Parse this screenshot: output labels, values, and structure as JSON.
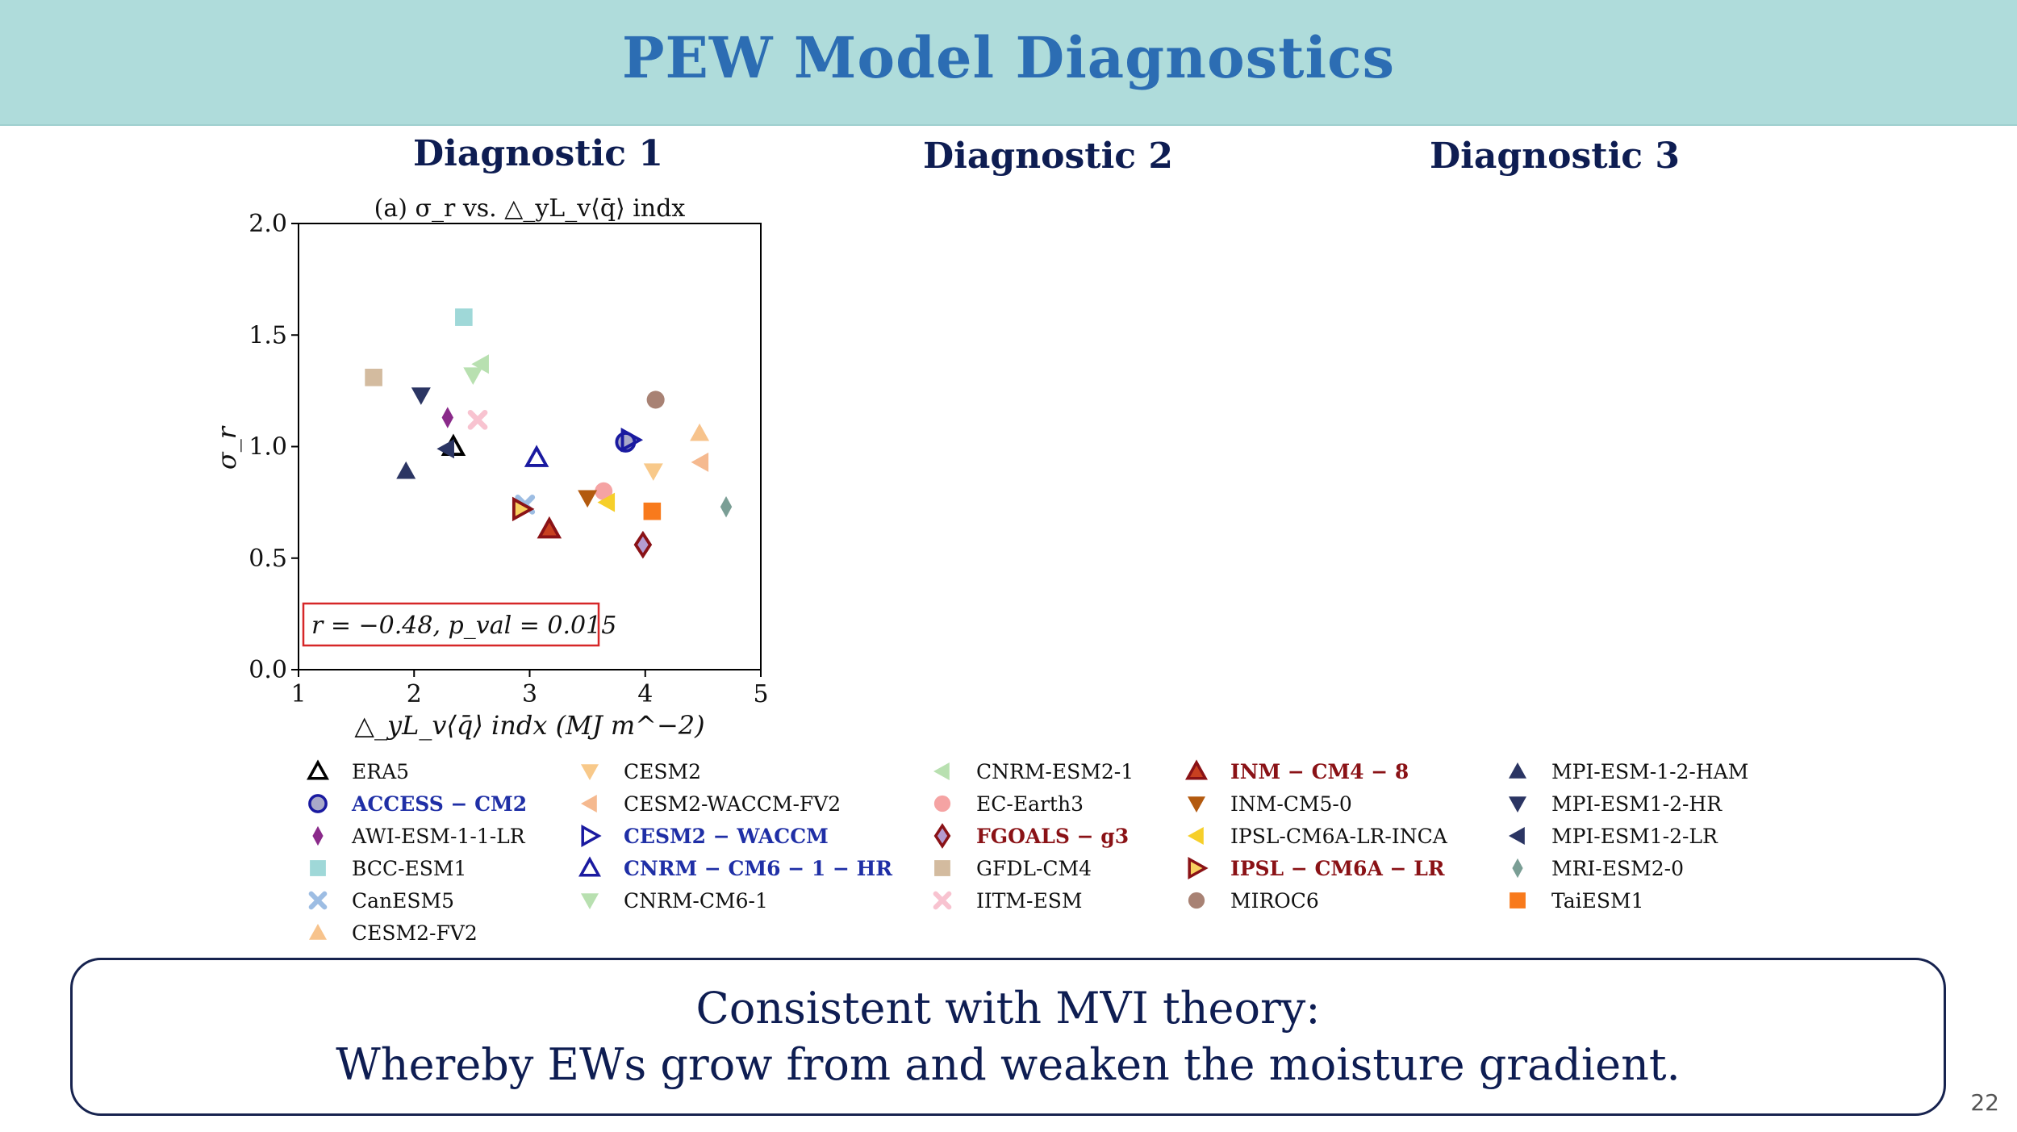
{
  "header": {
    "title": "PEW Model Diagnostics"
  },
  "diagnostics": {
    "d1": "Diagnostic 1",
    "d2": "Diagnostic 2",
    "d3": "Diagnostic 3"
  },
  "chart_data": {
    "type": "scatter",
    "title": "(a) σ_r vs. △_yL_v⟨q̄⟩ indx",
    "xlabel": "△_yL_v⟨q̄⟩ indx (MJ m^−2)",
    "ylabel": "σ_r",
    "xlim": [
      1,
      5
    ],
    "ylim": [
      0,
      2.0
    ],
    "x_ticks": [
      "1",
      "2",
      "3",
      "4",
      "5"
    ],
    "y_ticks": [
      "0.0",
      "0.5",
      "1.0",
      "1.5",
      "2.0"
    ],
    "x_tick_values": [
      1,
      2,
      3,
      4,
      5
    ],
    "y_tick_values": [
      0,
      0.5,
      1.0,
      1.5,
      2.0
    ],
    "annotation": "r = −0.48, p_val = 0.015",
    "grid": false,
    "points": [
      {
        "name": "ERA5",
        "x": 2.34,
        "y": 1.0
      },
      {
        "name": "ACCESS − CM2",
        "x": 3.83,
        "y": 1.02
      },
      {
        "name": "AWI-ESM-1-1-LR",
        "x": 2.29,
        "y": 1.13
      },
      {
        "name": "BCC-ESM1",
        "x": 2.43,
        "y": 1.58
      },
      {
        "name": "CanESM5",
        "x": 2.96,
        "y": 0.74
      },
      {
        "name": "CESM2-FV2",
        "x": 4.47,
        "y": 1.06
      },
      {
        "name": "CESM2",
        "x": 4.07,
        "y": 0.89
      },
      {
        "name": "CESM2-WACCM-FV2",
        "x": 4.48,
        "y": 0.93
      },
      {
        "name": "CESM2 − WACCM",
        "x": 3.87,
        "y": 1.03
      },
      {
        "name": "CNRM − CM6 − 1 − HR",
        "x": 3.06,
        "y": 0.95
      },
      {
        "name": "CNRM-CM6-1",
        "x": 2.51,
        "y": 1.32
      },
      {
        "name": "CNRM-ESM2-1",
        "x": 2.58,
        "y": 1.37
      },
      {
        "name": "EC-Earth3",
        "x": 3.64,
        "y": 0.8
      },
      {
        "name": "FGOALS − g3",
        "x": 3.98,
        "y": 0.56
      },
      {
        "name": "GFDL-CM4",
        "x": 1.65,
        "y": 1.31
      },
      {
        "name": "IITM-ESM",
        "x": 2.55,
        "y": 1.12
      },
      {
        "name": "INM − CM4 − 8",
        "x": 3.17,
        "y": 0.63
      },
      {
        "name": "INM-CM5-0",
        "x": 3.5,
        "y": 0.77
      },
      {
        "name": "IPSL-CM6A-LR-INCA",
        "x": 3.67,
        "y": 0.75
      },
      {
        "name": "IPSL − CM6A − LR",
        "x": 2.93,
        "y": 0.72
      },
      {
        "name": "MIROC6",
        "x": 4.09,
        "y": 1.21
      },
      {
        "name": "MPI-ESM-1-2-HAM",
        "x": 1.93,
        "y": 0.89
      },
      {
        "name": "MPI-ESM1-2-HR",
        "x": 2.06,
        "y": 1.23
      },
      {
        "name": "MPI-ESM1-2-LR",
        "x": 2.28,
        "y": 0.99
      },
      {
        "name": "MRI-ESM2-0",
        "x": 4.7,
        "y": 0.73
      },
      {
        "name": "TaiESM1",
        "x": 4.06,
        "y": 0.71
      }
    ]
  },
  "legend": [
    {
      "label": "ERA5",
      "marker": "triangle-up",
      "fill": "none",
      "stroke": "#000000",
      "style": ""
    },
    {
      "label": "ACCESS − CM2",
      "marker": "circle",
      "fill": "#a9a9c9",
      "stroke": "#1a1aa0",
      "style": "hl-blue"
    },
    {
      "label": "AWI-ESM-1-1-LR",
      "marker": "diamond-thin",
      "fill": "#8a2a8a",
      "stroke": "none",
      "style": ""
    },
    {
      "label": "BCC-ESM1",
      "marker": "square",
      "fill": "#9fd8d8",
      "stroke": "none",
      "style": ""
    },
    {
      "label": "CanESM5",
      "marker": "x",
      "fill": "#9dbde3",
      "stroke": "none",
      "style": ""
    },
    {
      "label": "CESM2-FV2",
      "marker": "triangle-up",
      "fill": "#f7c38c",
      "stroke": "none",
      "style": ""
    },
    {
      "label": "CESM2",
      "marker": "triangle-down",
      "fill": "#f8c98a",
      "stroke": "none",
      "style": ""
    },
    {
      "label": "CESM2-WACCM-FV2",
      "marker": "triangle-left",
      "fill": "#f5b98f",
      "stroke": "none",
      "style": ""
    },
    {
      "label": "CESM2 − WACCM",
      "marker": "triangle-right",
      "fill": "none",
      "stroke": "#1a1aa0",
      "style": "hl-blue"
    },
    {
      "label": "CNRM − CM6 − 1 − HR",
      "marker": "triangle-up",
      "fill": "none",
      "stroke": "#1a1aa0",
      "style": "hl-blue"
    },
    {
      "label": "CNRM-CM6-1",
      "marker": "triangle-down",
      "fill": "#b8e0b0",
      "stroke": "none",
      "style": ""
    },
    {
      "label": "CNRM-ESM2-1",
      "marker": "triangle-left",
      "fill": "#b8e0b0",
      "stroke": "none",
      "style": ""
    },
    {
      "label": "EC-Earth3",
      "marker": "circle",
      "fill": "#f5a3a3",
      "stroke": "none",
      "style": ""
    },
    {
      "label": "FGOALS − g3",
      "marker": "diamond",
      "fill": "#b49bd0",
      "stroke": "#8a1216",
      "style": "hl-red"
    },
    {
      "label": "GFDL-CM4",
      "marker": "square",
      "fill": "#d3bb9f",
      "stroke": "none",
      "style": ""
    },
    {
      "label": "IITM-ESM",
      "marker": "x",
      "fill": "#f8c3d0",
      "stroke": "none",
      "style": ""
    },
    {
      "label": "INM − CM4 − 8",
      "marker": "triangle-up",
      "fill": "#c84020",
      "stroke": "#8a1216",
      "style": "hl-red"
    },
    {
      "label": "INM-CM5-0",
      "marker": "triangle-down",
      "fill": "#b35a0f",
      "stroke": "none",
      "style": ""
    },
    {
      "label": "IPSL-CM6A-LR-INCA",
      "marker": "triangle-left",
      "fill": "#f6cf2a",
      "stroke": "none",
      "style": ""
    },
    {
      "label": "IPSL − CM6A − LR",
      "marker": "triangle-right",
      "fill": "#f8d060",
      "stroke": "#8a1216",
      "style": "hl-red"
    },
    {
      "label": "MIROC6",
      "marker": "circle",
      "fill": "#a88274",
      "stroke": "none",
      "style": ""
    },
    {
      "label": "MPI-ESM-1-2-HAM",
      "marker": "triangle-up",
      "fill": "#2b3563",
      "stroke": "none",
      "style": ""
    },
    {
      "label": "MPI-ESM1-2-HR",
      "marker": "triangle-down",
      "fill": "#2b3563",
      "stroke": "none",
      "style": ""
    },
    {
      "label": "MPI-ESM1-2-LR",
      "marker": "triangle-left",
      "fill": "#2b3563",
      "stroke": "none",
      "style": ""
    },
    {
      "label": "MRI-ESM2-0",
      "marker": "diamond-thin",
      "fill": "#7a9e95",
      "stroke": "none",
      "style": ""
    },
    {
      "label": "TaiESM1",
      "marker": "square",
      "fill": "#f87a1c",
      "stroke": "none",
      "style": ""
    }
  ],
  "conclusion": {
    "line1": "Consistent with MVI theory:",
    "line2": "Whereby EWs grow from and weaken the moisture gradient."
  },
  "page_number": "22"
}
